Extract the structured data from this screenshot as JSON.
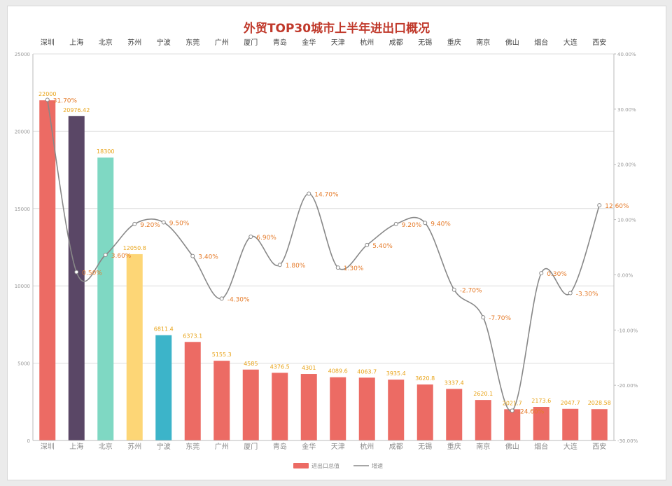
{
  "chart_data": {
    "type": "bar",
    "title": "外贸TOP30城市上半年进出口概况",
    "categories": [
      "深圳",
      "上海",
      "北京",
      "苏州",
      "宁波",
      "东莞",
      "广州",
      "厦门",
      "青岛",
      "金华",
      "天津",
      "杭州",
      "成都",
      "无锡",
      "重庆",
      "南京",
      "佛山",
      "烟台",
      "大连",
      "西安"
    ],
    "series": [
      {
        "name": "进出口总值",
        "kind": "bar",
        "values": [
          22000,
          20976.42,
          18300,
          12050.8,
          6811.4,
          6373.1,
          5155.3,
          4585,
          4376.5,
          4301,
          4089.6,
          4063.7,
          3935.4,
          3620.8,
          3337.4,
          2620.1,
          2021.7,
          2173.6,
          2047.7,
          2028.58
        ],
        "labels": [
          "22000",
          "20976.42",
          "18300",
          "12050.8",
          "6811.4",
          "6373.1",
          "5155.3",
          "4585",
          "4376.5",
          "4301",
          "4089.6",
          "4063.7",
          "3935.4",
          "3620.8",
          "3337.4",
          "2620.1",
          "2021.7",
          "2173.6",
          "2047.7",
          "2028.58"
        ]
      },
      {
        "name": "增速",
        "kind": "line",
        "values": [
          31.7,
          0.5,
          3.6,
          9.2,
          9.5,
          3.4,
          -4.3,
          6.9,
          1.8,
          14.7,
          1.3,
          5.4,
          9.2,
          9.4,
          -2.7,
          -7.7,
          -24.6,
          0.3,
          -3.3,
          12.6
        ],
        "labels": [
          "31.70%",
          "0.50%",
          "3.60%",
          "9.20%",
          "9.50%",
          "3.40%",
          "-4.30%",
          "6.90%",
          "1.80%",
          "14.70%",
          "1.30%",
          "5.40%",
          "9.20%",
          "9.40%",
          "-2.70%",
          "-7.70%",
          "-24.60%",
          "0.30%",
          "-3.30%",
          "12.60%"
        ]
      }
    ],
    "y_left": {
      "min": 0,
      "max": 25000,
      "ticks": [
        "0",
        "5000",
        "10000",
        "15000",
        "20000",
        "25000"
      ]
    },
    "y_right": {
      "min": -30,
      "max": 40,
      "ticks": [
        "-30.00%",
        "-20.00%",
        "-10.00%",
        "0.00%",
        "10.00%",
        "20.00%",
        "30.00%",
        "40.00%"
      ]
    },
    "grid": true,
    "legend_position": "bottom",
    "colors": {
      "bar_default": "#ec6b64",
      "bar_highlight": [
        "#ec6b64",
        "#5a4766",
        "#7fd8c3",
        "#fdd676",
        "#3cb4c9"
      ],
      "line": "#888888",
      "grid": "#dcdcdc",
      "title": "#c0392b"
    }
  }
}
